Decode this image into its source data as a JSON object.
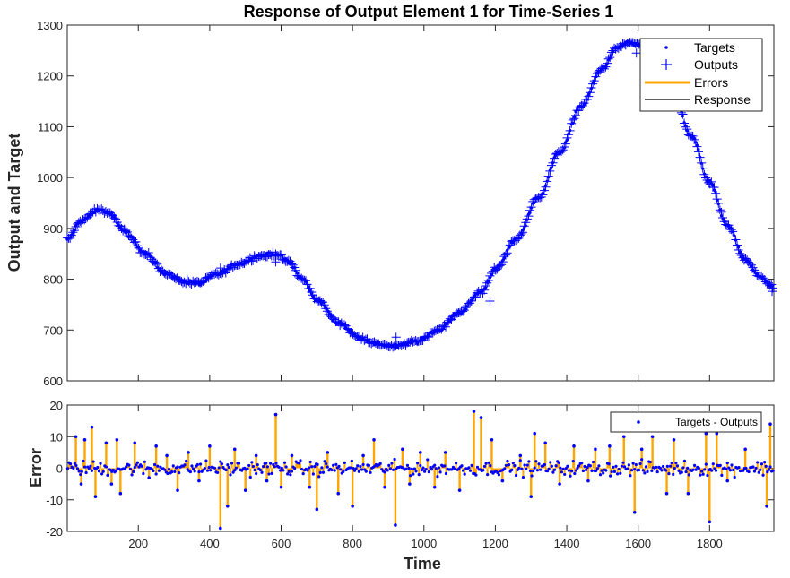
{
  "chart_data": [
    {
      "type": "line",
      "title": "Response of Output Element 1 for Time-Series 1",
      "xlabel": "",
      "ylabel": "Output and Target",
      "xlim": [
        1,
        1980
      ],
      "ylim": [
        600,
        1300
      ],
      "yticks": [
        600,
        700,
        800,
        900,
        1000,
        1100,
        1200,
        1300
      ],
      "legend": {
        "placement": "top-right",
        "entries": [
          "Targets",
          "Outputs",
          "Errors",
          "Response"
        ]
      },
      "colors": {
        "targets": "#0000ff",
        "outputs": "#0000ff",
        "errors": "#ffa500",
        "response": "#000000"
      },
      "curve_keypoints": {
        "x": [
          1,
          40,
          90,
          120,
          160,
          220,
          280,
          330,
          370,
          420,
          480,
          540,
          585,
          620,
          660,
          700,
          760,
          820,
          870,
          920,
          980,
          1040,
          1100,
          1160,
          1200,
          1260,
          1320,
          1380,
          1440,
          1500,
          1540,
          1570,
          1600,
          1620,
          1660,
          1700,
          1750,
          1800,
          1850,
          1900,
          1940,
          1980
        ],
        "y": [
          878,
          915,
          937,
          930,
          895,
          850,
          810,
          795,
          792,
          810,
          830,
          846,
          850,
          835,
          800,
          760,
          715,
          685,
          672,
          668,
          678,
          700,
          735,
          775,
          820,
          880,
          960,
          1050,
          1140,
          1215,
          1255,
          1265,
          1262,
          1250,
          1215,
          1160,
          1080,
          990,
          905,
          840,
          805,
          785
        ]
      }
    },
    {
      "type": "bar",
      "title": "",
      "xlabel": "Time",
      "ylabel": "Error",
      "xlim": [
        1,
        1980
      ],
      "ylim": [
        -20,
        20
      ],
      "yticks": [
        -20,
        -10,
        0,
        10,
        20
      ],
      "xticks": [
        200,
        400,
        600,
        800,
        1000,
        1200,
        1400,
        1600,
        1800
      ],
      "legend": {
        "placement": "top-right",
        "entries": [
          "Targets - Outputs"
        ]
      },
      "colors": {
        "markers": "#0000ff",
        "stems": "#ffa500"
      },
      "large_errors": {
        "x": [
          25,
          40,
          50,
          70,
          80,
          110,
          125,
          140,
          150,
          190,
          230,
          250,
          280,
          310,
          340,
          370,
          400,
          430,
          450,
          470,
          500,
          530,
          560,
          585,
          600,
          630,
          680,
          700,
          730,
          760,
          800,
          830,
          860,
          890,
          920,
          940,
          960,
          990,
          1030,
          1060,
          1100,
          1140,
          1160,
          1190,
          1220,
          1270,
          1300,
          1310,
          1340,
          1380,
          1420,
          1460,
          1480,
          1520,
          1560,
          1590,
          1610,
          1640,
          1680,
          1700,
          1740,
          1790,
          1800,
          1820,
          1850,
          1900,
          1960,
          1970
        ],
        "values": [
          10,
          -5,
          9,
          13,
          -9,
          8,
          -5,
          9,
          -8,
          8,
          -3,
          7,
          4,
          -7,
          5,
          -4,
          7,
          -19,
          -12,
          6,
          -7,
          4,
          -4,
          17,
          -6,
          4,
          -6,
          -13,
          5,
          -8,
          -12,
          4,
          9,
          -6,
          -18,
          6,
          -5,
          5,
          -6,
          5,
          -7,
          18,
          16,
          9,
          -4,
          4,
          -9,
          11,
          8,
          -5,
          7,
          -4,
          6,
          7,
          10,
          -14,
          6,
          10,
          -8,
          9,
          -8,
          11,
          -17,
          11,
          -4,
          6,
          -12,
          14
        ]
      }
    }
  ]
}
